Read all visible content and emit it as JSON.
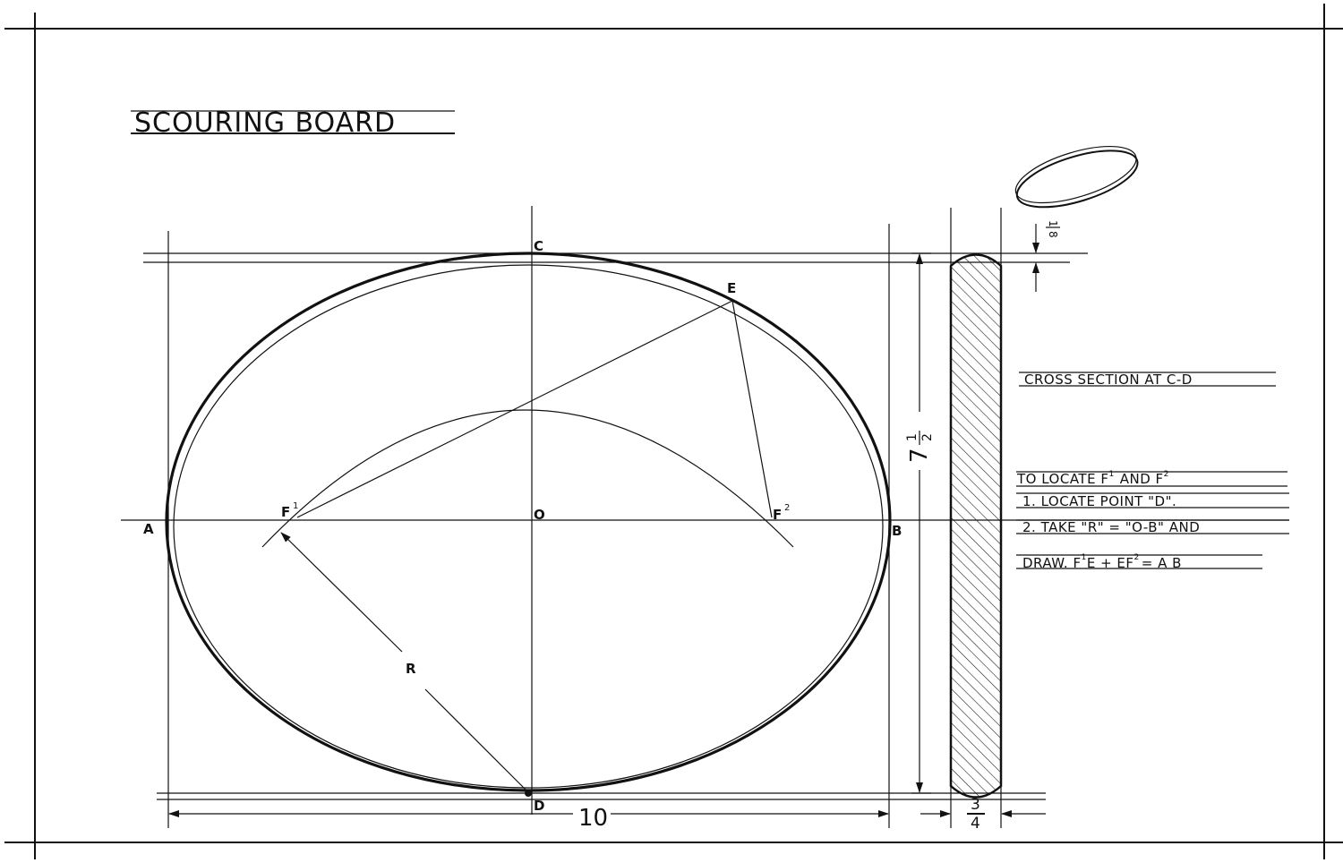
{
  "title": "SCOURING BOARD",
  "points": {
    "a": "A",
    "b": "B",
    "c": "C",
    "d": "D",
    "e": "E",
    "o": "O",
    "f1": "F",
    "f1_sup": "1",
    "f2": "F",
    "f2_sup": "2",
    "r": "R"
  },
  "dimensions": {
    "width": "10",
    "height_whole": "7",
    "height_num": "1",
    "height_den": "2",
    "thickness_num": "3",
    "thickness_den": "4",
    "edge_num": "1",
    "edge_den": "8"
  },
  "notes": {
    "cross_section": "CROSS SECTION AT C-D",
    "heading": "TO LOCATE F",
    "heading_sup1": "1",
    "heading_and": "AND F",
    "heading_sup2": "2",
    "step1": "1. LOCATE POINT \"D\".",
    "step2": "2. TAKE \"R\" = \"O-B\" AND",
    "step3_a": "DRAW. F",
    "step3_sup1": "1",
    "step3_b": "E + EF",
    "step3_sup2": "2",
    "step3_c": "= A B"
  }
}
